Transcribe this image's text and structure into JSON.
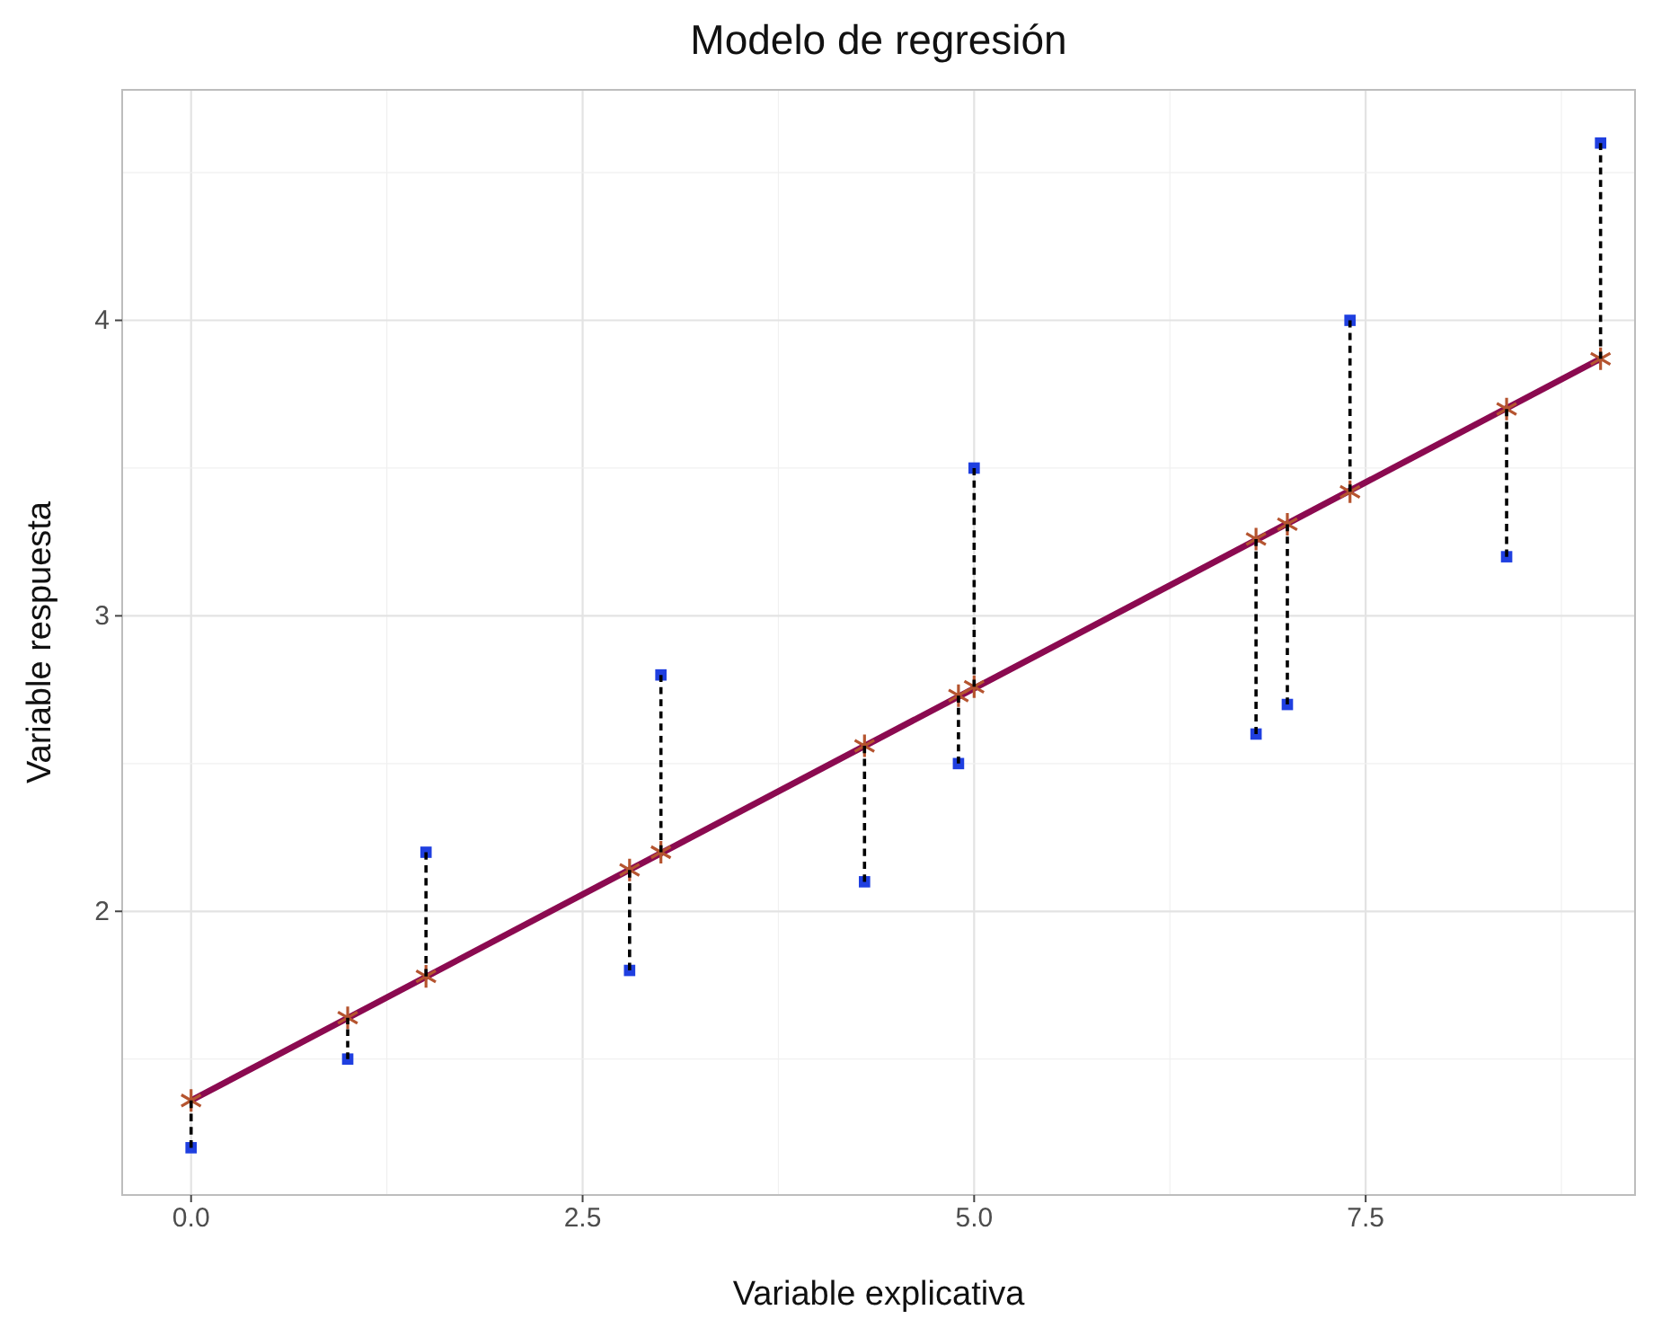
{
  "chart_data": {
    "type": "scatter",
    "title": "Modelo de regresión",
    "xlabel": "Variable explicativa",
    "ylabel": "Variable respuesta",
    "xlim": [
      -0.44,
      9.22
    ],
    "ylim": [
      1.04,
      4.78
    ],
    "xticks": [
      {
        "value": 0,
        "label": "0.0"
      },
      {
        "value": 2.5,
        "label": "2.5"
      },
      {
        "value": 5,
        "label": "5.0"
      },
      {
        "value": 7.5,
        "label": "7.5"
      }
    ],
    "yticks": [
      2,
      3,
      4
    ],
    "grid": true,
    "x": [
      0,
      1,
      1.5,
      2.8,
      3,
      4.3,
      4.9,
      5,
      6.8,
      7,
      7.4,
      8.4,
      9
    ],
    "series": [
      {
        "type": "line",
        "color": "#8b0a50",
        "x": [
          0,
          9
        ],
        "values": [
          1.36,
          3.87
        ],
        "marker": "none",
        "line_style": "solid"
      },
      {
        "type": "line",
        "color": "#000000",
        "x": [
          0,
          0
        ],
        "values": [
          1.2,
          1.36
        ],
        "marker": "none",
        "line_style": "dashed"
      },
      {
        "type": "line",
        "color": "#000000",
        "x": [
          1,
          1
        ],
        "values": [
          1.5,
          1.64
        ],
        "marker": "none",
        "line_style": "dashed"
      },
      {
        "type": "line",
        "color": "#000000",
        "x": [
          1.5,
          1.5
        ],
        "values": [
          2.2,
          1.78
        ],
        "marker": "none",
        "line_style": "dashed"
      },
      {
        "type": "line",
        "color": "#000000",
        "x": [
          2.8,
          2.8
        ],
        "values": [
          1.8,
          2.14
        ],
        "marker": "none",
        "line_style": "dashed"
      },
      {
        "type": "line",
        "color": "#000000",
        "x": [
          3,
          3
        ],
        "values": [
          2.8,
          2.2
        ],
        "marker": "none",
        "line_style": "dashed"
      },
      {
        "type": "line",
        "color": "#000000",
        "x": [
          4.3,
          4.3
        ],
        "values": [
          2.1,
          2.56
        ],
        "marker": "none",
        "line_style": "dashed"
      },
      {
        "type": "line",
        "color": "#000000",
        "x": [
          4.9,
          4.9
        ],
        "values": [
          2.5,
          2.73
        ],
        "marker": "none",
        "line_style": "dashed"
      },
      {
        "type": "line",
        "color": "#000000",
        "x": [
          5,
          5
        ],
        "values": [
          3.5,
          2.76
        ],
        "marker": "none",
        "line_style": "dashed"
      },
      {
        "type": "line",
        "color": "#000000",
        "x": [
          6.8,
          6.8
        ],
        "values": [
          2.6,
          3.26
        ],
        "marker": "none",
        "line_style": "dashed"
      },
      {
        "type": "line",
        "color": "#000000",
        "x": [
          7,
          7
        ],
        "values": [
          2.7,
          3.31
        ],
        "marker": "none",
        "line_style": "dashed"
      },
      {
        "type": "line",
        "color": "#000000",
        "x": [
          7.4,
          7.4
        ],
        "values": [
          4.0,
          3.42
        ],
        "marker": "none",
        "line_style": "dashed"
      },
      {
        "type": "line",
        "color": "#000000",
        "x": [
          8.4,
          8.4
        ],
        "values": [
          3.2,
          3.7
        ],
        "marker": "none",
        "line_style": "dashed"
      },
      {
        "type": "line",
        "color": "#000000",
        "x": [
          9,
          9
        ],
        "values": [
          4.6,
          3.87
        ],
        "marker": "none",
        "line_style": "dashed"
      },
      {
        "color": "#1f3fe0",
        "values": [
          1.2,
          1.5,
          2.2,
          1.8,
          2.8,
          2.1,
          2.5,
          3.5,
          2.6,
          2.7,
          4.0,
          3.2,
          4.6
        ],
        "marker": "square"
      },
      {
        "color": "#b5542f",
        "values": [
          1.36,
          1.64,
          1.78,
          2.14,
          2.2,
          2.56,
          2.73,
          2.76,
          3.26,
          3.31,
          3.42,
          3.7,
          3.87
        ],
        "marker": "cross"
      }
    ]
  }
}
